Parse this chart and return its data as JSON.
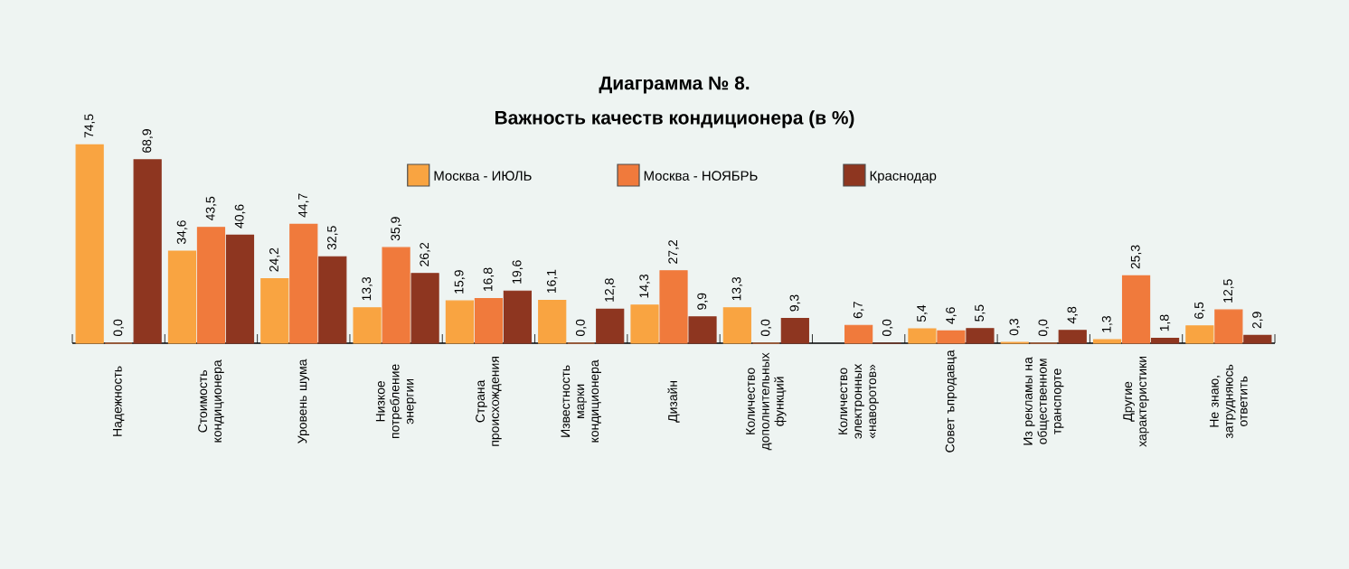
{
  "chart_data": {
    "type": "bar",
    "title": "Диаграмма № 8.",
    "subtitle": "Важность качеств кондиционера (в %)",
    "legend": "top",
    "categories": [
      "Надежность",
      "Стоимость кондиционера",
      "Уровень шума",
      "Низкое потребление энергии",
      "Страна происхождения",
      "Известность марки кондиционера",
      "Дизайн",
      "Количество дополнительных функций",
      "Количество электронных «наворотов»",
      "Совет ъпродавца",
      "Из рекламы на общественном транспорте",
      "Другие характеристики",
      "Не знаю, затрудняюсь ответить"
    ],
    "series": [
      {
        "name": "Москва - ИЮЛЬ",
        "color": "#f9a441",
        "values": [
          74.5,
          34.6,
          24.2,
          13.3,
          15.9,
          16.1,
          14.3,
          13.3,
          null,
          5.4,
          0.3,
          1.3,
          6.5
        ],
        "value_labels": [
          "74,5",
          "34,6",
          "24,2",
          "13,3",
          "15,9",
          "16,1",
          "14,3",
          "13,3",
          null,
          "5,4",
          "0,3",
          "1,3",
          "6,5"
        ]
      },
      {
        "name": "Москва - НОЯБРЬ",
        "color": "#f07a3c",
        "values": [
          0.0,
          43.5,
          44.7,
          35.9,
          16.8,
          0.0,
          27.2,
          0.0,
          6.7,
          4.6,
          0.0,
          25.3,
          12.5
        ],
        "value_labels": [
          "0,0",
          "43,5",
          "44,7",
          "35,9",
          "16,8",
          "0,0",
          "27,2",
          "0,0",
          "6,7",
          "4,6",
          "0,0",
          "25,3",
          "12,5"
        ]
      },
      {
        "name": "Краснодар",
        "color": "#8e3620",
        "values": [
          68.9,
          40.6,
          32.5,
          26.2,
          19.6,
          12.8,
          9.9,
          9.3,
          0.0,
          5.5,
          4.8,
          1.8,
          2.9
        ],
        "value_labels": [
          "68,9",
          "40,6",
          "32,5",
          "26,2",
          "19,6",
          "12,8",
          "9,9",
          "9,3",
          "0,0",
          "5,5",
          "4,8",
          "1,8",
          "2,9"
        ]
      }
    ]
  }
}
